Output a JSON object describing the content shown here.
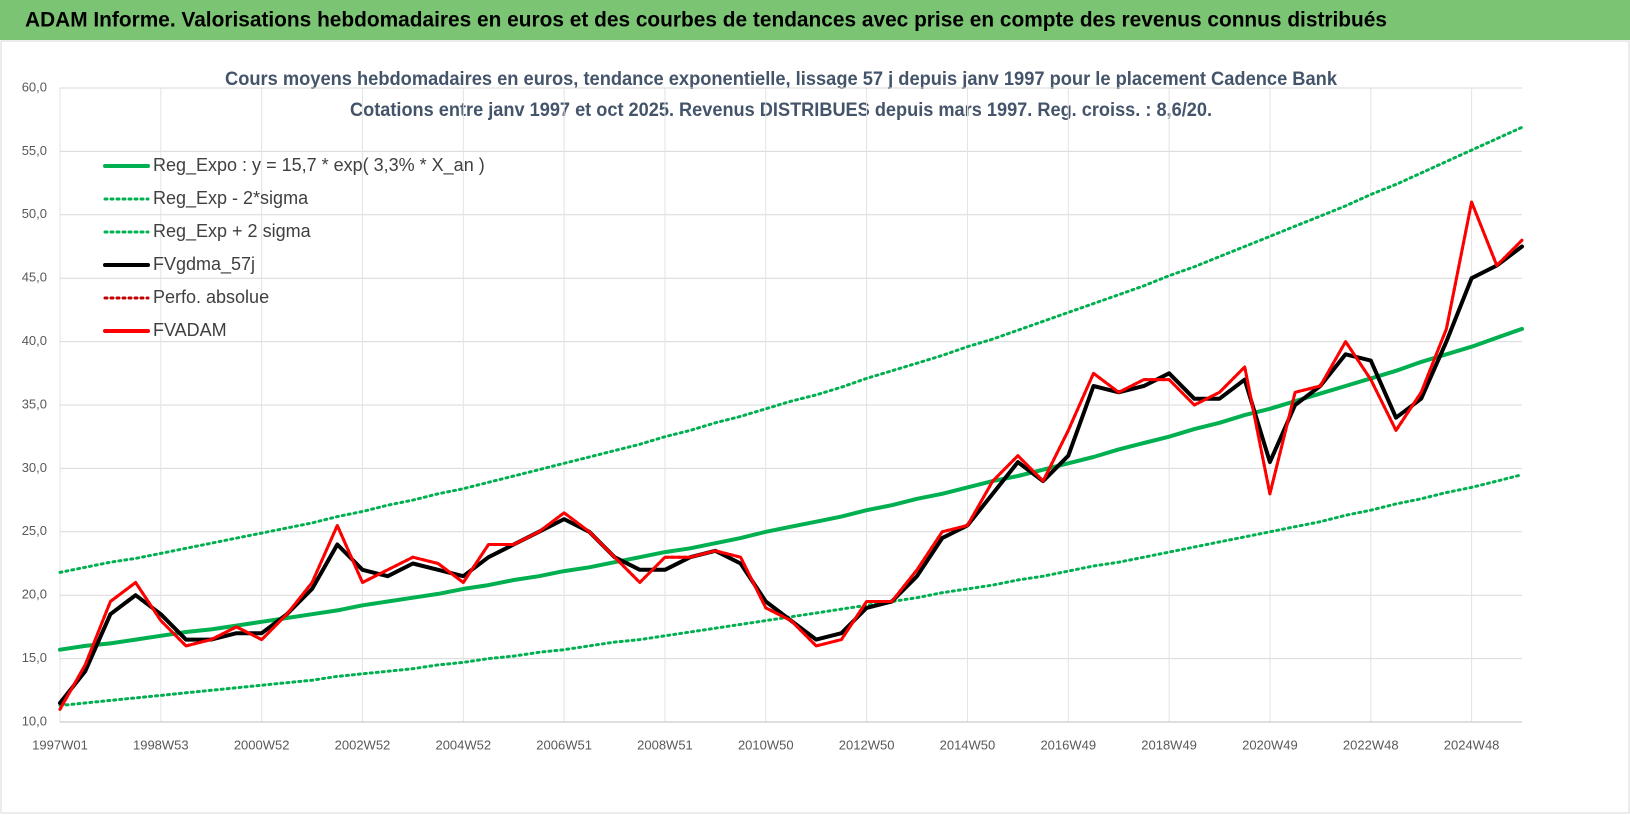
{
  "header": {
    "title": "ADAM Informe. Valorisations hebdomadaires en euros et des courbes de tendances avec prise en compte des revenus connus distribués"
  },
  "chart_data": {
    "type": "line",
    "title": "Cours moyens hebdomadaires en euros, tendance exponentielle, lissage 57 j depuis janv 1997 pour le placement Cadence Bank",
    "subtitle": "Cotations entre janv 1997 et oct 2025. Revenus DISTRIBUES depuis mars 1997. Reg. croiss. : 8,6/20.",
    "categories": [
      "1997W01",
      null,
      null,
      null,
      "1998W53",
      null,
      null,
      null,
      "2000W52",
      null,
      null,
      null,
      "2002W52",
      null,
      null,
      null,
      "2004W52",
      null,
      null,
      null,
      "2006W51",
      null,
      null,
      null,
      "2008W51",
      null,
      null,
      null,
      "2010W50",
      null,
      null,
      null,
      "2012W50",
      null,
      null,
      null,
      "2014W50",
      null,
      null,
      null,
      "2016W49",
      null,
      null,
      null,
      "2018W49",
      null,
      null,
      null,
      "2020W49",
      null,
      null,
      null,
      "2022W48",
      null,
      null,
      null,
      "2024W48",
      null,
      null
    ],
    "ylim": [
      10,
      60
    ],
    "yticks": [
      {
        "value": 10,
        "label": "10,0"
      },
      {
        "value": 15,
        "label": "15,0"
      },
      {
        "value": 20,
        "label": "20,0"
      },
      {
        "value": 25,
        "label": "25,0"
      },
      {
        "value": 30,
        "label": "30,0"
      },
      {
        "value": 35,
        "label": "35,0"
      },
      {
        "value": 40,
        "label": "40,0"
      },
      {
        "value": 45,
        "label": "45,0"
      },
      {
        "value": 50,
        "label": "50,0"
      },
      {
        "value": 55,
        "label": "55,0"
      },
      {
        "value": 60,
        "label": "60,0"
      }
    ],
    "grid": true,
    "legend": "top-left",
    "series": [
      {
        "name": "Reg_Expo : y = 15,7 * exp( 3,3% *  X_an )",
        "color": "#00b050",
        "style": "solid",
        "values": [
          15.7,
          16.0,
          16.2,
          16.5,
          16.8,
          17.1,
          17.3,
          17.6,
          17.9,
          18.2,
          18.5,
          18.8,
          19.2,
          19.5,
          19.8,
          20.1,
          20.5,
          20.8,
          21.2,
          21.5,
          21.9,
          22.2,
          22.6,
          23.0,
          23.4,
          23.7,
          24.1,
          24.5,
          25.0,
          25.4,
          25.8,
          26.2,
          26.7,
          27.1,
          27.6,
          28.0,
          28.5,
          29.0,
          29.4,
          29.9,
          30.4,
          30.9,
          31.5,
          32.0,
          32.5,
          33.1,
          33.6,
          34.2,
          34.7,
          35.3,
          35.9,
          36.5,
          37.1,
          37.7,
          38.4,
          39.0,
          39.6,
          40.3,
          41.0
        ]
      },
      {
        "name": "Reg_Exp - 2*sigma",
        "color": "#00b050",
        "style": "dotted",
        "values": [
          11.3,
          11.5,
          11.7,
          11.9,
          12.1,
          12.3,
          12.5,
          12.7,
          12.9,
          13.1,
          13.3,
          13.6,
          13.8,
          14.0,
          14.2,
          14.5,
          14.7,
          15.0,
          15.2,
          15.5,
          15.7,
          16.0,
          16.3,
          16.5,
          16.8,
          17.1,
          17.4,
          17.7,
          18.0,
          18.3,
          18.6,
          18.9,
          19.2,
          19.5,
          19.8,
          20.2,
          20.5,
          20.8,
          21.2,
          21.5,
          21.9,
          22.3,
          22.6,
          23.0,
          23.4,
          23.8,
          24.2,
          24.6,
          25.0,
          25.4,
          25.8,
          26.3,
          26.7,
          27.2,
          27.6,
          28.1,
          28.5,
          29.0,
          29.5
        ]
      },
      {
        "name": "Reg_Exp + 2 sigma",
        "color": "#00b050",
        "style": "dotted",
        "values": [
          21.8,
          22.2,
          22.6,
          22.9,
          23.3,
          23.7,
          24.1,
          24.5,
          24.9,
          25.3,
          25.7,
          26.2,
          26.6,
          27.1,
          27.5,
          28.0,
          28.4,
          28.9,
          29.4,
          29.9,
          30.4,
          30.9,
          31.4,
          31.9,
          32.5,
          33.0,
          33.6,
          34.1,
          34.7,
          35.3,
          35.8,
          36.4,
          37.1,
          37.7,
          38.3,
          38.9,
          39.6,
          40.2,
          40.9,
          41.6,
          42.3,
          43.0,
          43.7,
          44.4,
          45.2,
          45.9,
          46.7,
          47.5,
          48.3,
          49.1,
          49.9,
          50.7,
          51.6,
          52.4,
          53.3,
          54.2,
          55.1,
          56.0,
          56.9
        ]
      },
      {
        "name": "FVgdma_57j",
        "color": "#000000",
        "style": "solid",
        "values": [
          11.5,
          14,
          18.5,
          20,
          18.5,
          16.5,
          16.5,
          17,
          17,
          18.5,
          20.5,
          24,
          22,
          21.5,
          22.5,
          22,
          21.5,
          23,
          24,
          25,
          26,
          25,
          23,
          22,
          22,
          23,
          23.5,
          22.5,
          19.5,
          18,
          16.5,
          17,
          19,
          19.5,
          21.5,
          24.5,
          25.5,
          28,
          30.5,
          29,
          31,
          36.5,
          36,
          36.5,
          37.5,
          35.5,
          35.5,
          37,
          30.5,
          35,
          36.5,
          39,
          38.5,
          34,
          35.5,
          40,
          45,
          46,
          47.5
        ]
      },
      {
        "name": "Perfo. absolue",
        "color": "#c00000",
        "style": "dotted",
        "values": [
          11,
          14.5,
          19.5,
          21,
          18,
          16,
          16.5,
          17.5,
          16.5,
          18.5,
          21,
          25.5,
          21,
          22,
          23,
          22.5,
          21,
          24,
          24,
          25,
          26.5,
          25,
          23,
          21,
          23,
          23,
          23.5,
          23,
          19,
          18,
          16,
          16.5,
          19.5,
          19.5,
          22,
          25,
          25.5,
          29,
          31,
          29,
          33,
          37.5,
          36,
          37,
          37,
          35,
          36,
          38,
          28,
          36,
          36.5,
          40,
          37,
          33,
          36,
          41,
          51,
          46,
          48
        ]
      },
      {
        "name": "FVADAM",
        "color": "#ff0000",
        "style": "solid",
        "values": [
          11,
          14.5,
          19.5,
          21,
          18,
          16,
          16.5,
          17.5,
          16.5,
          18.5,
          21,
          25.5,
          21,
          22,
          23,
          22.5,
          21,
          24,
          24,
          25,
          26.5,
          25,
          23,
          21,
          23,
          23,
          23.5,
          23,
          19,
          18,
          16,
          16.5,
          19.5,
          19.5,
          22,
          25,
          25.5,
          29,
          31,
          29,
          33,
          37.5,
          36,
          37,
          37,
          35,
          36,
          38,
          28,
          36,
          36.5,
          40,
          37,
          33,
          36,
          41,
          51,
          46,
          48
        ]
      }
    ]
  }
}
